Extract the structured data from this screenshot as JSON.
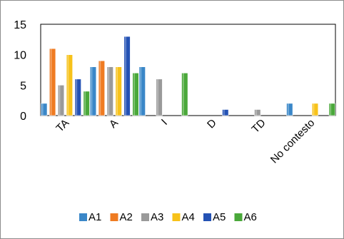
{
  "chart_data": {
    "type": "bar",
    "title": "",
    "xlabel": "",
    "ylabel": "",
    "ylim": [
      0,
      15
    ],
    "yticks": [
      0,
      5,
      10,
      15
    ],
    "grid": false,
    "legend_position": "bottom",
    "categories": [
      "TA",
      "A",
      "I",
      "D",
      "TD",
      "No contesto"
    ],
    "series": [
      {
        "name": "A1",
        "color": "#3a87c8",
        "values": [
          2,
          8,
          8,
          0,
          0,
          2
        ]
      },
      {
        "name": "A2",
        "color": "#ef7b22",
        "values": [
          11,
          9,
          0,
          0,
          0,
          0
        ]
      },
      {
        "name": "A3",
        "color": "#9a9a9a",
        "values": [
          5,
          8,
          6,
          0,
          1,
          0
        ]
      },
      {
        "name": "A4",
        "color": "#f7c21a",
        "values": [
          10,
          8,
          0,
          0,
          0,
          2
        ]
      },
      {
        "name": "A5",
        "color": "#2452b4",
        "values": [
          6,
          13,
          0,
          1,
          0,
          0
        ]
      },
      {
        "name": "A6",
        "color": "#4aa83a",
        "values": [
          4,
          7,
          7,
          0,
          0,
          2
        ]
      }
    ]
  }
}
